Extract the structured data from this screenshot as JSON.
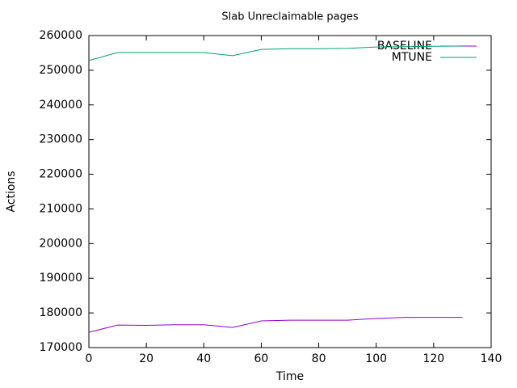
{
  "chart_data": {
    "type": "line",
    "title": "Slab Unreclaimable pages",
    "x_label": "Time",
    "y_label": "Actions",
    "x": [
      0,
      10,
      20,
      30,
      40,
      50,
      60,
      70,
      80,
      90,
      100,
      110,
      120,
      130
    ],
    "series": [
      {
        "name": "BASELINE",
        "color": "#9400d3",
        "values": [
          174400,
          176500,
          176400,
          176600,
          176600,
          175800,
          177700,
          177900,
          177900,
          177900,
          178400,
          178700,
          178700,
          178700
        ]
      },
      {
        "name": "MTUNE",
        "color": "#009e73",
        "values": [
          252800,
          255100,
          255100,
          255100,
          255100,
          254200,
          256000,
          256200,
          256200,
          256300,
          256700,
          256800,
          256900,
          257000
        ]
      }
    ],
    "xlim": [
      0,
      140
    ],
    "xticks": [
      0,
      20,
      40,
      60,
      80,
      100,
      120,
      140
    ],
    "ylim": [
      170000,
      260000
    ],
    "yticks": [
      170000,
      180000,
      190000,
      200000,
      210000,
      220000,
      230000,
      240000,
      250000,
      260000
    ],
    "grid": false,
    "legend": "top-right"
  }
}
